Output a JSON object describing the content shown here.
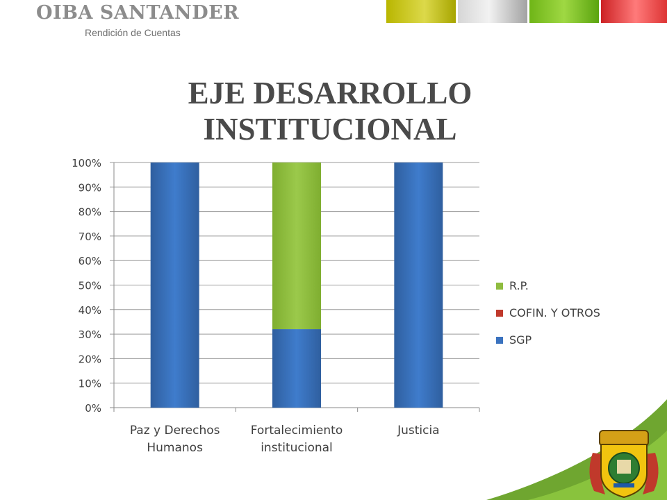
{
  "header": {
    "brand": "OIBA SANTANDER",
    "subtitle": "Rendición de Cuentas"
  },
  "slide": {
    "title_line1": "EJE DESARROLLO",
    "title_line2": "INSTITUCIONAL"
  },
  "colors": {
    "SGP": "#3a72bf",
    "COFIN": "#c0392b",
    "RP": "#8fbc3f",
    "swoosh": "#6aa81f"
  },
  "chart_data": {
    "type": "bar",
    "stacked": "percent",
    "categories": [
      [
        "Paz y Derechos",
        "Humanos"
      ],
      [
        "Fortalecimiento",
        "institucional"
      ],
      [
        "Justicia"
      ]
    ],
    "series": [
      {
        "name": "SGP",
        "values": [
          100,
          32,
          100
        ]
      },
      {
        "name": "COFIN. Y OTROS",
        "values": [
          0,
          0,
          0
        ]
      },
      {
        "name": "R.P.",
        "values": [
          0,
          68,
          0
        ]
      }
    ],
    "ylim": [
      0,
      100
    ],
    "yticks": [
      "0%",
      "10%",
      "20%",
      "30%",
      "40%",
      "50%",
      "60%",
      "70%",
      "80%",
      "90%",
      "100%"
    ],
    "grid": true,
    "legend_position": "right"
  },
  "legend": [
    {
      "label": "R.P.",
      "color_key": "RP"
    },
    {
      "label": "COFIN. Y OTROS",
      "color_key": "COFIN"
    },
    {
      "label": "SGP",
      "color_key": "SGP"
    }
  ]
}
